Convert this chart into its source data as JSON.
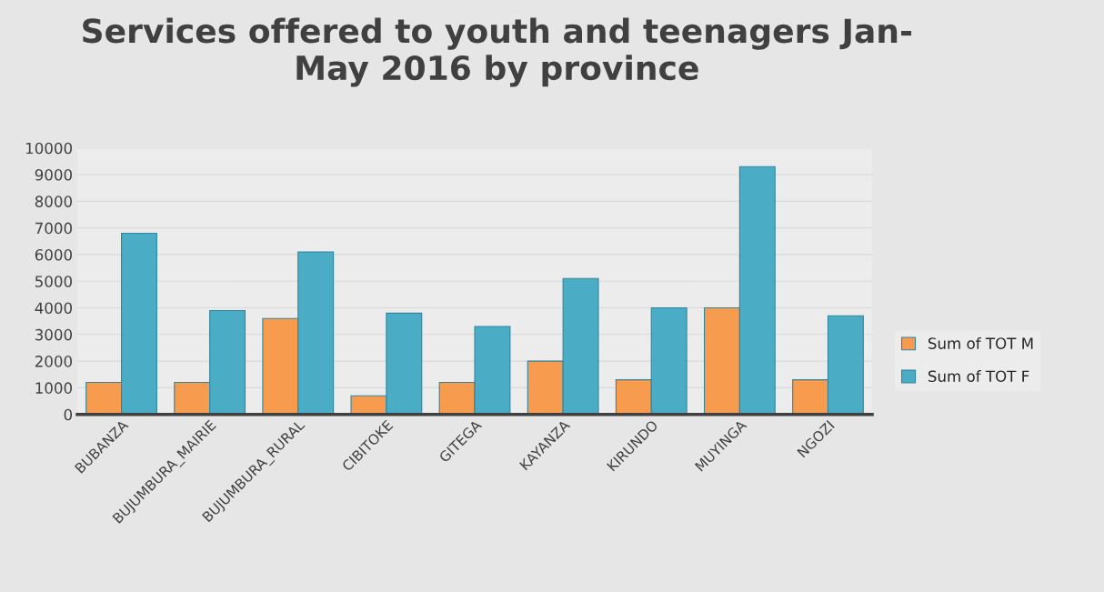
{
  "chart_data": {
    "type": "bar",
    "title": "Services offered to youth and teenagers Jan-\nMay 2016 by province",
    "categories": [
      "BUBANZA",
      "BUJUMBURA_MAIRIE",
      "BUJUMBURA_RURAL",
      "CIBITOKE",
      "GITEGA",
      "KAYANZA",
      "KIRUNDO",
      "MUYINGA",
      "NGOZI"
    ],
    "series": [
      {
        "name": "Sum of TOT M",
        "color": "#f79b4f",
        "values": [
          1200,
          1200,
          3600,
          700,
          1200,
          2000,
          1300,
          4000,
          1300
        ]
      },
      {
        "name": "Sum of TOT F",
        "color": "#4bacc6",
        "values": [
          6800,
          3900,
          6100,
          3800,
          3300,
          5100,
          4000,
          9300,
          3700
        ]
      }
    ],
    "ylim": [
      0,
      10000
    ],
    "yticks": [
      0,
      1000,
      2000,
      3000,
      4000,
      5000,
      6000,
      7000,
      8000,
      9000,
      10000
    ],
    "grid": "y",
    "legend": "right"
  }
}
